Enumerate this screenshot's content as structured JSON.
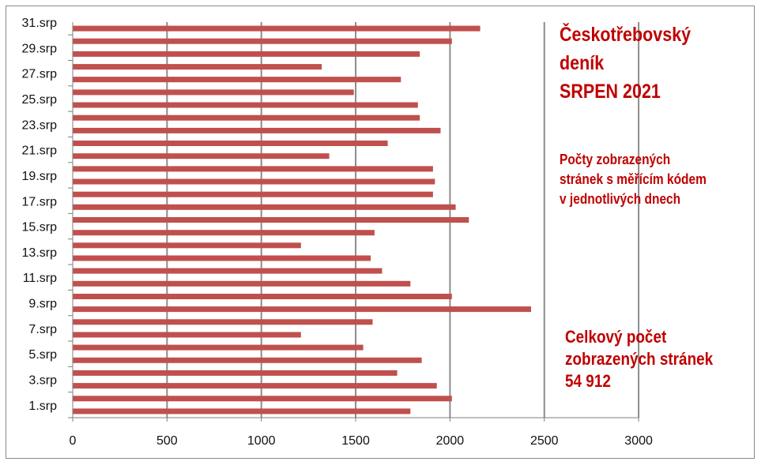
{
  "header": {
    "title_lines": [
      "Českotřebovský",
      "deník",
      "SRPEN 2021"
    ],
    "subtitle_lines": [
      "Počty zobrazených",
      "stránek s měřícím kódem",
      "v jednotlivých dnech"
    ],
    "total_lines": [
      "Celkový počet",
      "zobrazených stránek",
      "54 912"
    ]
  },
  "colors": {
    "bar": "#c0504d",
    "grid": "#8c8c8c",
    "text": "#c00000"
  },
  "chart_data": {
    "type": "bar",
    "orientation": "horizontal",
    "categories": [
      "1.srp",
      "2.srp",
      "3.srp",
      "4.srp",
      "5.srp",
      "6.srp",
      "7.srp",
      "8.srp",
      "9.srp",
      "10.srp",
      "11.srp",
      "12.srp",
      "13.srp",
      "14.srp",
      "15.srp",
      "16.srp",
      "17.srp",
      "18.srp",
      "19.srp",
      "20.srp",
      "21.srp",
      "22.srp",
      "23.srp",
      "24.srp",
      "25.srp",
      "26.srp",
      "27.srp",
      "28.srp",
      "29.srp",
      "30.srp",
      "31.srp"
    ],
    "tick_labels": [
      "1.srp",
      "3.srp",
      "5.srp",
      "7.srp",
      "9.srp",
      "11.srp",
      "13.srp",
      "15.srp",
      "17.srp",
      "19.srp",
      "21.srp",
      "23.srp",
      "25.srp",
      "27.srp",
      "29.srp",
      "31.srp"
    ],
    "values": [
      1790,
      2010,
      1930,
      1720,
      1850,
      1540,
      1210,
      1590,
      2430,
      2010,
      1790,
      1640,
      1580,
      1210,
      1600,
      2100,
      2030,
      1910,
      1920,
      1910,
      1360,
      1670,
      1950,
      1840,
      1830,
      1490,
      1740,
      1320,
      1840,
      2010,
      2160
    ],
    "x_ticks": [
      0,
      500,
      1000,
      1500,
      2000,
      2500,
      3000
    ],
    "xlim": [
      0,
      3000
    ],
    "grid": true
  }
}
